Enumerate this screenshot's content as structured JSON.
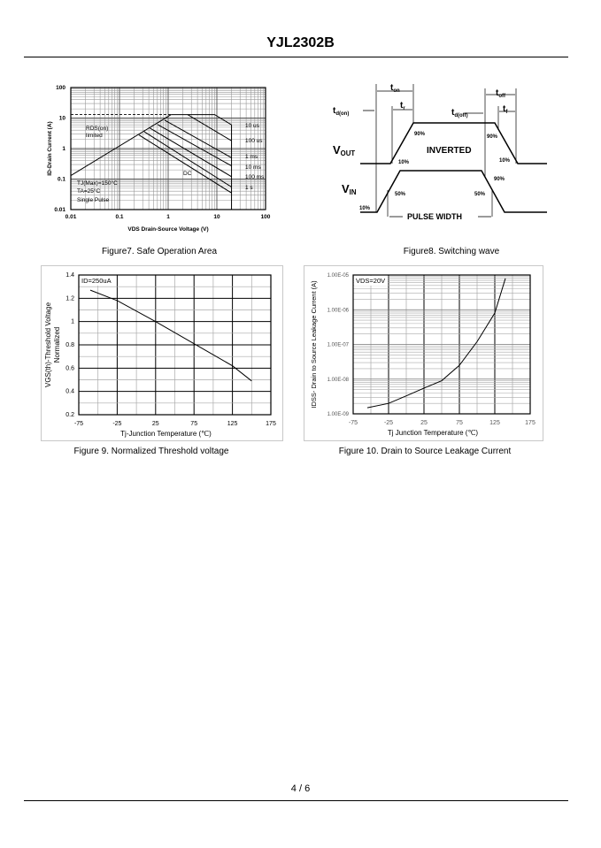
{
  "header": {
    "title": "YJL2302B"
  },
  "footer": {
    "page": "4 / 6"
  },
  "captions": {
    "fig7": "Figure7. Safe Operation Area",
    "fig8": "Figure8. Switching wave",
    "fig9": "Figure 9.  Normalized Threshold voltage",
    "fig10": "Figure 10.  Drain to Source Leakage Current"
  },
  "chart_data": [
    {
      "id": "fig7",
      "type": "line",
      "title": "Safe Operation Area",
      "xlabel": "VDS Drain-Source Voltage (V)",
      "ylabel": "ID-Drain Current (A)",
      "xscale": "log",
      "yscale": "log",
      "xlim": [
        0.01,
        100
      ],
      "ylim": [
        0.01,
        100
      ],
      "xticks": [
        "0.01",
        "0.1",
        "1",
        "10",
        "100"
      ],
      "yticks": [
        "0.01",
        "0.1",
        "1",
        "10",
        "100"
      ],
      "annotations": [
        "RDS(on) limited",
        "TJ(Max)=150°C",
        "TA=25°C",
        "Single Pulse",
        "DC"
      ],
      "series": [
        {
          "name": "RDS(on) limit",
          "x": [
            0.01,
            1.15
          ],
          "y": [
            0.13,
            13
          ]
        },
        {
          "name": "current limit",
          "dashed": true,
          "x": [
            0.01,
            1.15
          ],
          "y": [
            13,
            13
          ]
        },
        {
          "name": "10 us",
          "x": [
            1.15,
            9,
            20
          ],
          "y": [
            13,
            13,
            6
          ]
        },
        {
          "name": "100 us",
          "x": [
            2.5,
            20
          ],
          "y": [
            13,
            1.8
          ]
        },
        {
          "name": "1 ms",
          "x": [
            0.85,
            20
          ],
          "y": [
            8.5,
            0.5
          ]
        },
        {
          "name": "10 ms",
          "x": [
            0.6,
            20
          ],
          "y": [
            6.2,
            0.27
          ]
        },
        {
          "name": "100 ms",
          "x": [
            0.42,
            20
          ],
          "y": [
            4.7,
            0.12
          ]
        },
        {
          "name": "1 s",
          "x": [
            0.32,
            20
          ],
          "y": [
            3.6,
            0.055
          ]
        },
        {
          "name": "DC",
          "x": [
            0.25,
            20
          ],
          "y": [
            2.8,
            0.035
          ]
        },
        {
          "name": "VDS limit",
          "x": [
            20,
            20
          ],
          "y": [
            0.01,
            6
          ]
        }
      ],
      "series_labels": [
        "10 us",
        "100 us",
        "1 ms",
        "10 ms",
        "100 ms",
        "1 s"
      ]
    },
    {
      "id": "fig8",
      "type": "diagram",
      "title": "Switching wave",
      "labels": {
        "ton": "t",
        "ton_sub": "on",
        "tr": "t",
        "tr_sub": "r",
        "tdon": "t",
        "tdon_sub": "d(on)",
        "tdoff": "t",
        "tdoff_sub": "d(off)",
        "toff": "t",
        "toff_sub": "off",
        "tf": "t",
        "tf_sub": "f",
        "vout": "V",
        "vout_sub": "OUT",
        "vin": "V",
        "vin_sub": "IN",
        "inverted": "INVERTED",
        "pulse_width": "PULSE WIDTH",
        "p90a": "90%",
        "p90b": "90%",
        "p10a": "10%",
        "p10b": "10%",
        "p90c": "90%",
        "p50a": "50%",
        "p50b": "50%",
        "p10c": "10%"
      }
    },
    {
      "id": "fig9",
      "type": "line",
      "title": "Normalized Threshold voltage",
      "xlabel": "Tj-Junction Temperature (℃)",
      "ylabel": "VGS(th)-Threshold Voltage",
      "ylabel2": "Normalized",
      "annotation": "ID=250uA",
      "xlim": [
        -75,
        175
      ],
      "ylim": [
        0.2,
        1.4
      ],
      "xticks": [
        "-75",
        "-25",
        "25",
        "75",
        "125",
        "175"
      ],
      "yticks": [
        "0.2",
        "0.4",
        "0.6",
        "0.8",
        "1",
        "1.2",
        "1.4"
      ],
      "series": [
        {
          "name": "VGS(th)",
          "x": [
            -60,
            -25,
            25,
            75,
            125,
            150
          ],
          "y": [
            1.27,
            1.18,
            1.0,
            0.81,
            0.62,
            0.49
          ]
        }
      ]
    },
    {
      "id": "fig10",
      "type": "line",
      "title": "Drain to Source Leakage Current",
      "xlabel": "Tj Junction Temperature (℃)",
      "ylabel": "IDSS- Drain to Source Leakage Current (A)",
      "annotation": "VDS=20V",
      "yscale": "log",
      "xlim": [
        -75,
        175
      ],
      "ylim": [
        1e-09,
        1e-05
      ],
      "xticks": [
        "-75",
        "-25",
        "25",
        "75",
        "125",
        "175"
      ],
      "yticks": [
        "1.00E-09",
        "1.00E-08",
        "1.00E-07",
        "1.00E-06",
        "1.00E-05"
      ],
      "series": [
        {
          "name": "IDSS",
          "x": [
            -55,
            -25,
            0,
            25,
            50,
            75,
            100,
            125,
            140
          ],
          "y": [
            1.5e-09,
            2e-09,
            3.3e-09,
            5.5e-09,
            9e-09,
            2.5e-08,
            1.2e-07,
            8e-07,
            8e-06
          ]
        }
      ]
    }
  ]
}
